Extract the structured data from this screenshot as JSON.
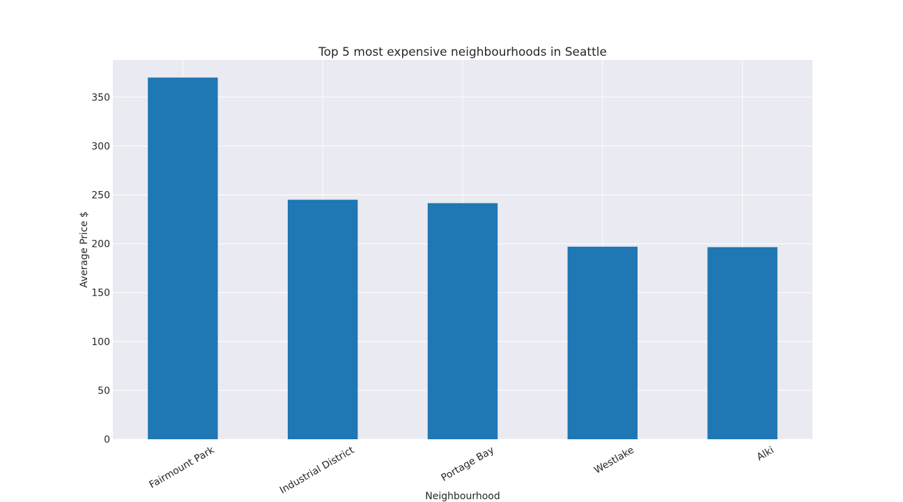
{
  "chart_data": {
    "type": "bar",
    "title": "Top 5 most expensive neighbourhoods in Seattle",
    "xlabel": "Neighbourhood",
    "ylabel": "Average Price $",
    "categories": [
      "Fairmount Park",
      "Industrial District",
      "Portage Bay",
      "Westlake",
      "Alki"
    ],
    "values": [
      370,
      245,
      241.5,
      197,
      196.5
    ],
    "ylim": [
      0,
      388
    ],
    "yticks": [
      0,
      50,
      100,
      150,
      200,
      250,
      300,
      350
    ],
    "grid": true,
    "legend": "none",
    "bar_color": "#1f77b4",
    "background_color": "#eaeaf2",
    "grid_color": "#ffffff"
  }
}
